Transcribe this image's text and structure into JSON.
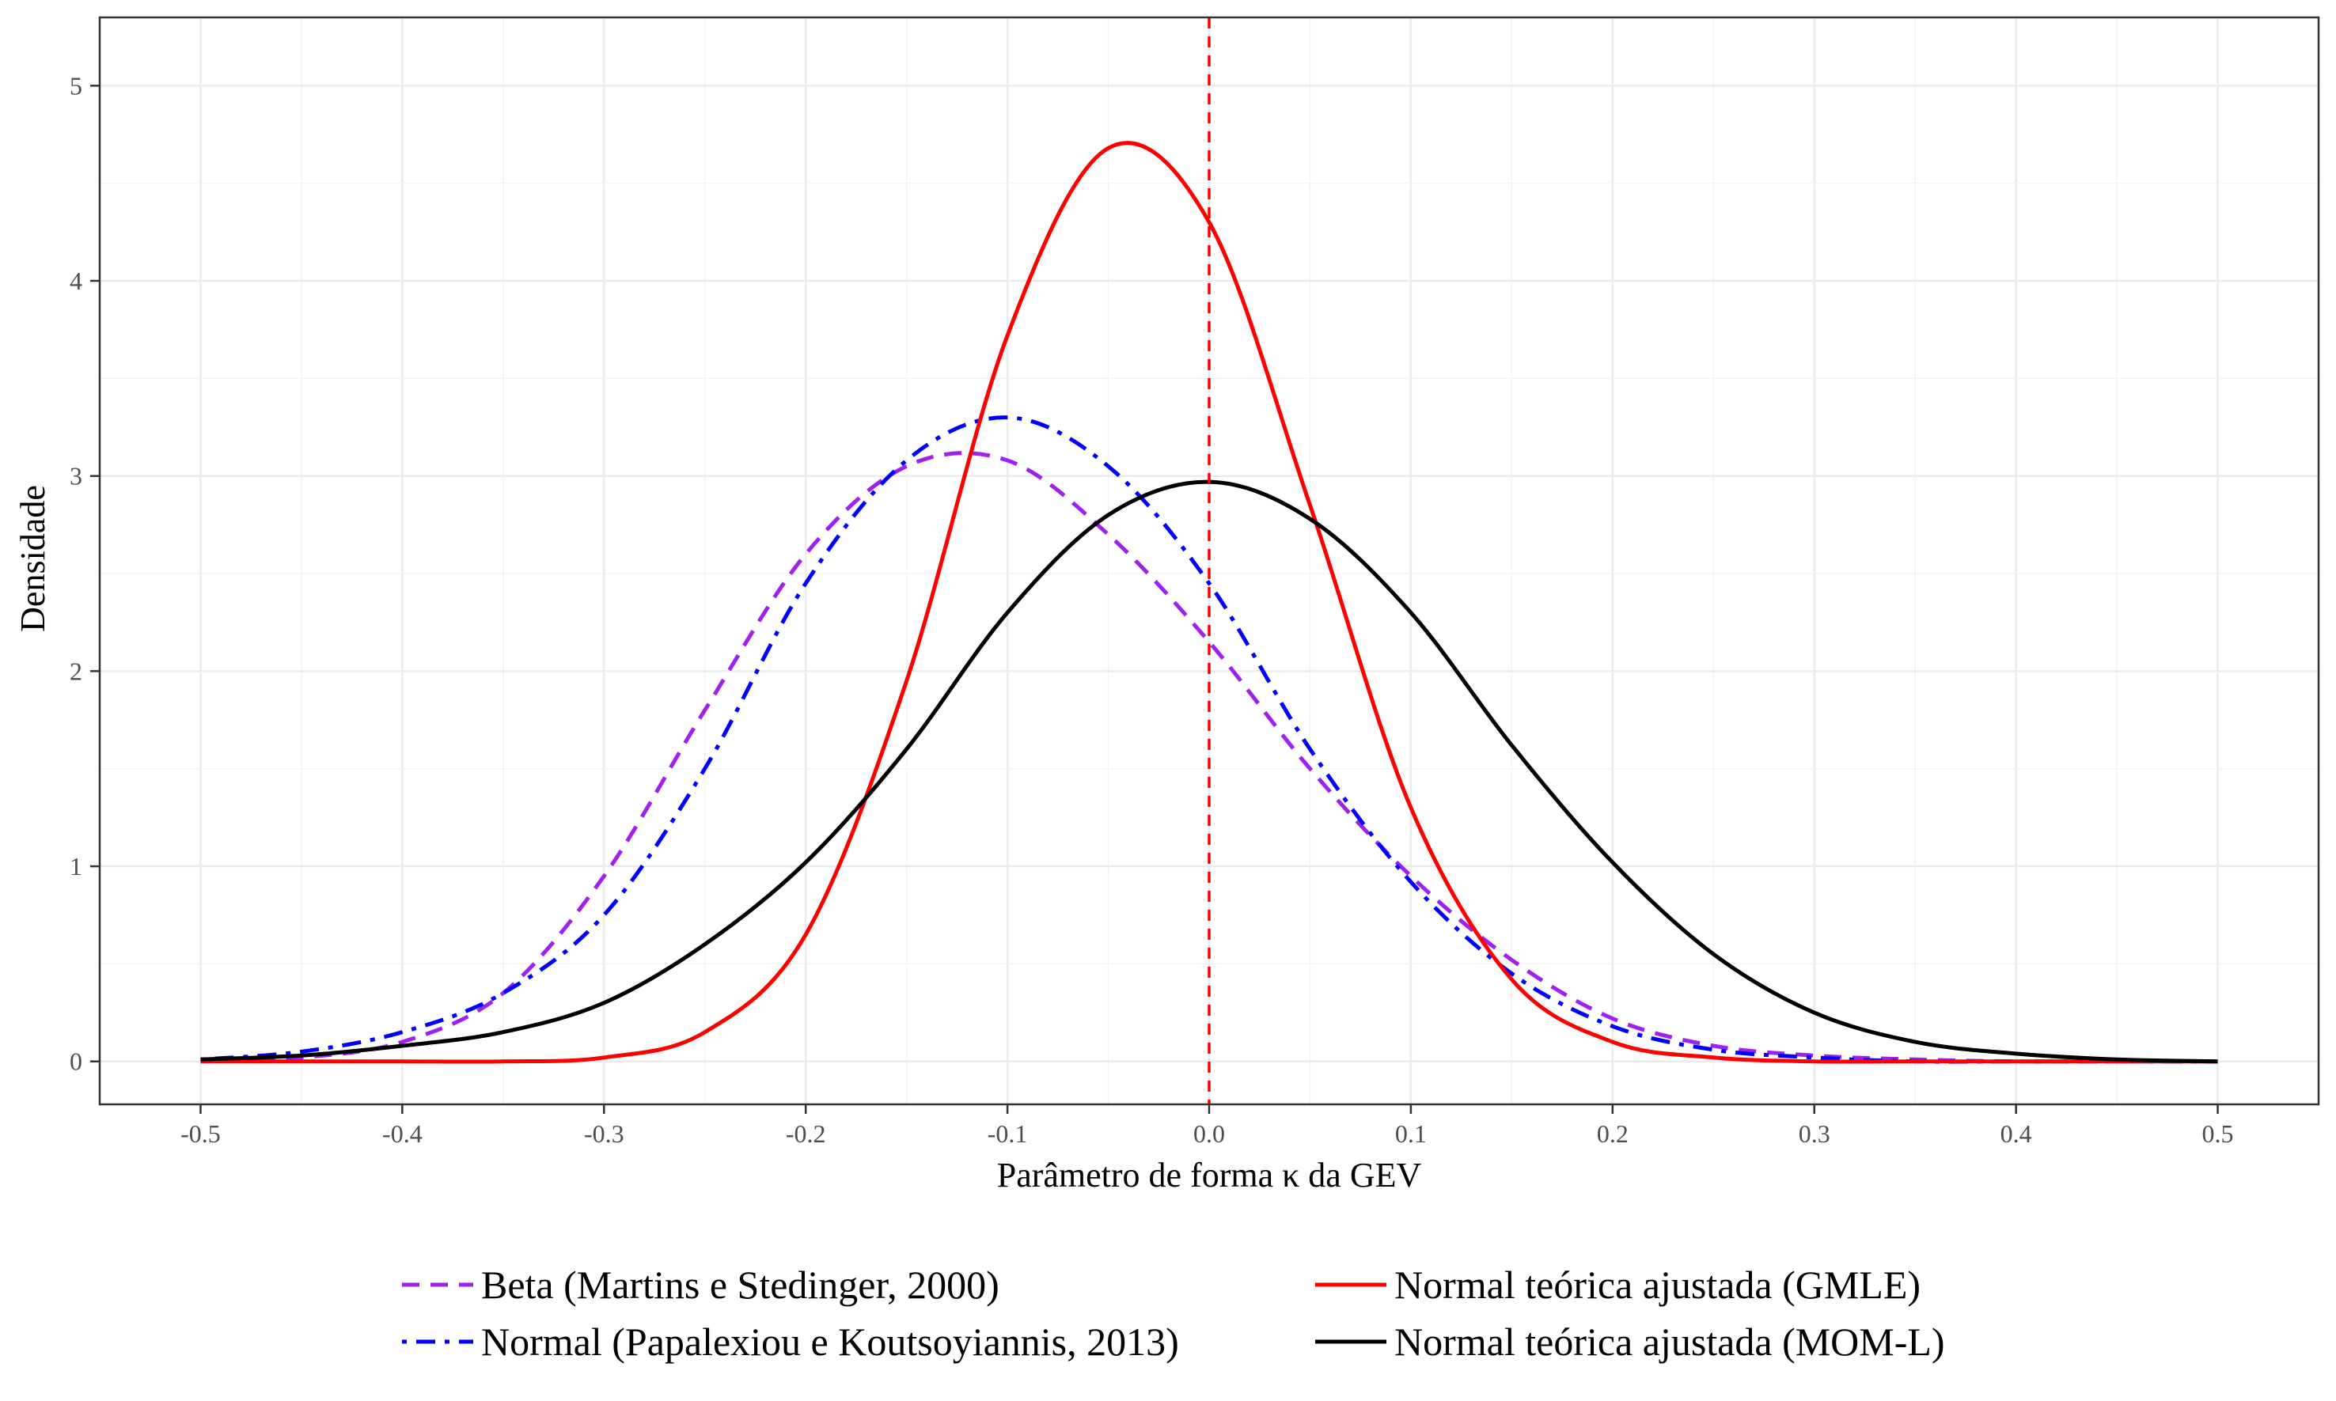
{
  "chart_data": {
    "type": "line",
    "title": "",
    "xlabel": "Parâmetro de forma κ da GEV",
    "ylabel": "Densidade",
    "xlim": [
      -0.55,
      0.55
    ],
    "ylim": [
      -0.22,
      5.35
    ],
    "x_ticks": [
      -0.5,
      -0.4,
      -0.3,
      -0.2,
      -0.1,
      0.0,
      0.1,
      0.2,
      0.3,
      0.4,
      0.5
    ],
    "x_tick_labels": [
      "-0.5",
      "-0.4",
      "-0.3",
      "-0.2",
      "-0.1",
      "0.0",
      "0.1",
      "0.2",
      "0.3",
      "0.4",
      "0.5"
    ],
    "y_ticks": [
      0,
      1,
      2,
      3,
      4,
      5
    ],
    "y_tick_labels": [
      "0",
      "1",
      "2",
      "3",
      "4",
      "5"
    ],
    "grid": true,
    "legend_position": "bottom",
    "reference_line": {
      "x": 0.0,
      "color": "#ff0000",
      "style": "dashed"
    },
    "series": [
      {
        "name": "Beta (Martins e Stedinger, 2000)",
        "color": "#a020f0",
        "dash": "dashed",
        "x": [
          -0.5,
          -0.45,
          -0.4,
          -0.35,
          -0.3,
          -0.25,
          -0.2,
          -0.15,
          -0.1,
          -0.05,
          0.0,
          0.05,
          0.1,
          0.15,
          0.2,
          0.25,
          0.3,
          0.35,
          0.4,
          0.45,
          0.5
        ],
        "values": [
          0.0,
          0.02,
          0.1,
          0.35,
          0.95,
          1.8,
          2.6,
          3.05,
          3.08,
          2.7,
          2.15,
          1.5,
          0.95,
          0.52,
          0.22,
          0.08,
          0.03,
          0.01,
          0.0,
          0.0,
          0.0
        ]
      },
      {
        "name": "Normal (Papalexiou e Koutsoyiannis, 2013)",
        "color": "#0000ff",
        "dash": "dotdash",
        "x": [
          -0.5,
          -0.45,
          -0.4,
          -0.35,
          -0.3,
          -0.25,
          -0.2,
          -0.15,
          -0.1,
          -0.05,
          0.0,
          0.05,
          0.1,
          0.15,
          0.2,
          0.25,
          0.3,
          0.35,
          0.4,
          0.45,
          0.5
        ],
        "values": [
          0.01,
          0.05,
          0.15,
          0.35,
          0.75,
          1.5,
          2.45,
          3.08,
          3.3,
          3.05,
          2.45,
          1.6,
          0.92,
          0.45,
          0.18,
          0.06,
          0.02,
          0.0,
          0.0,
          0.0,
          0.0
        ]
      },
      {
        "name": "Normal teórica ajustada (GMLE)",
        "color": "#ff0000",
        "dash": "solid",
        "x": [
          -0.5,
          -0.45,
          -0.4,
          -0.35,
          -0.3,
          -0.25,
          -0.2,
          -0.15,
          -0.1,
          -0.05,
          0.0,
          0.05,
          0.1,
          0.15,
          0.2,
          0.25,
          0.3,
          0.35,
          0.4,
          0.45,
          0.5
        ],
        "values": [
          0.0,
          0.0,
          0.0,
          0.0,
          0.02,
          0.15,
          0.65,
          1.95,
          3.72,
          4.68,
          4.3,
          2.85,
          1.3,
          0.42,
          0.1,
          0.02,
          0.0,
          0.0,
          0.0,
          0.0,
          0.0
        ]
      },
      {
        "name": "Normal teórica ajustada (MOM-L)",
        "color": "#000000",
        "dash": "solid",
        "x": [
          -0.5,
          -0.45,
          -0.4,
          -0.35,
          -0.3,
          -0.25,
          -0.2,
          -0.15,
          -0.1,
          -0.05,
          0.0,
          0.05,
          0.1,
          0.15,
          0.2,
          0.25,
          0.3,
          0.35,
          0.4,
          0.45,
          0.5
        ],
        "values": [
          0.01,
          0.03,
          0.08,
          0.15,
          0.3,
          0.6,
          1.02,
          1.6,
          2.3,
          2.8,
          2.97,
          2.78,
          2.3,
          1.62,
          1.02,
          0.55,
          0.25,
          0.1,
          0.04,
          0.01,
          0.0
        ]
      }
    ]
  }
}
